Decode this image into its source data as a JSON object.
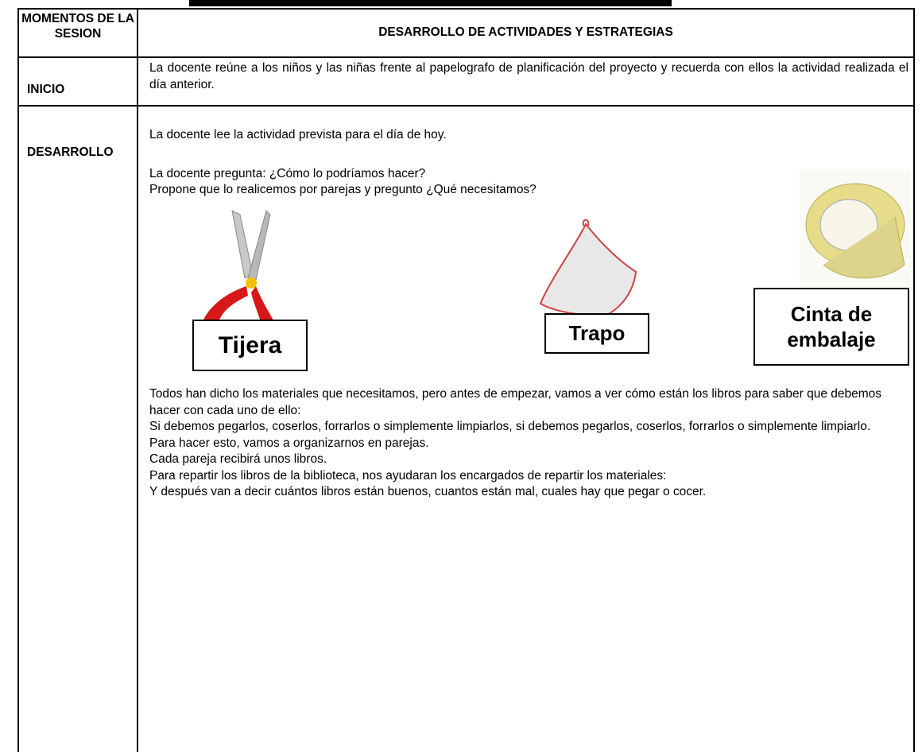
{
  "header": {
    "col1": "MOMENTOS DE LA SESION",
    "col2": "DESARROLLO DE ACTIVIDADES Y ESTRATEGIAS"
  },
  "rows": [
    {
      "label": "INICIO",
      "paragraphs": [
        "La docente reúne a los niños y las niñas frente al papelografo de planificación del proyecto y recuerda con ellos la actividad realizada el día anterior."
      ]
    },
    {
      "label": "DESARROLLO",
      "intro": [
        "La docente lee la actividad prevista para el día de hoy.",
        "La docente pregunta: ¿Cómo lo podríamos hacer?",
        "Propone que lo realicemos  por parejas y pregunto ¿Qué necesitamos?"
      ],
      "materials": [
        "Tijera",
        "Trapo",
        "Cinta de embalaje"
      ],
      "paragraphs": [
        "Todos han dicho los materiales que necesitamos, pero antes de empezar, vamos a ver cómo están los libros para saber que debemos hacer con cada uno de ello:",
        "Si debemos pegarlos, coserlos, forrarlos o simplemente limpiarlos, si debemos pegarlos, coserlos, forrarlos o simplemente limpiarlo.",
        "Para hacer esto, vamos a organizarnos en parejas.",
        "Cada pareja recibirá unos libros.",
        "Para repartir los libros de la biblioteca, nos ayudaran los encargados de repartir los materiales:",
        "Y después van a decir cuántos libros están buenos, cuantos están mal, cuales hay que pegar o cocer."
      ]
    }
  ]
}
